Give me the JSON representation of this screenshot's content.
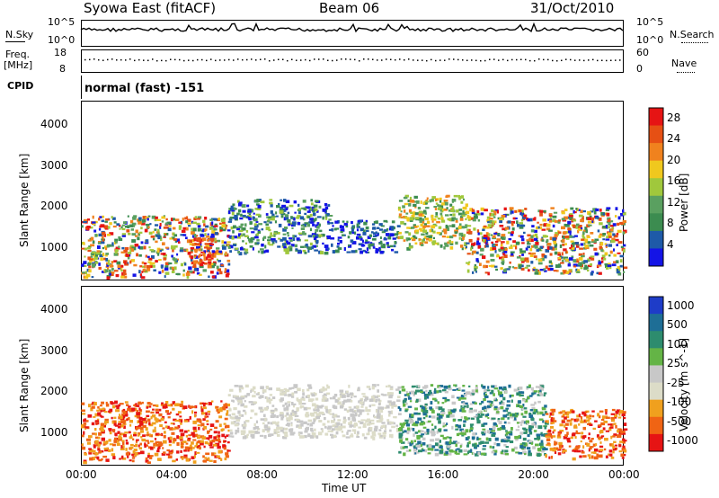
{
  "header": {
    "title_left": "Syowa East (fitACF)",
    "title_center": "Beam 06",
    "title_right": "31/Oct/2010"
  },
  "top_panels": {
    "nsky_label": "N.Sky",
    "nsky_top": "10^5",
    "nsky_bottom": "10^0",
    "nsearch_label": "N.Search",
    "nsearch_top": "10^5",
    "nsearch_bottom": "10^0",
    "freq_label": "Freq.",
    "freq_unit": "[MHz]",
    "freq_top": "18",
    "freq_bottom": "8",
    "nave_label": "Nave",
    "nave_top": "60",
    "nave_bottom": "0",
    "cpid_label": "CPID",
    "cpid_value": "normal (fast) -151"
  },
  "colors": {
    "power_scale": [
      "#1414e6",
      "#1e5aa8",
      "#3c8c50",
      "#5aa060",
      "#a0c83c",
      "#f0c81e",
      "#f0821e",
      "#e65014",
      "#e61414"
    ],
    "velocity_scale": [
      "#1e3cc8",
      "#1e6e96",
      "#2d8c6e",
      "#64b446",
      "#c8c8c8",
      "#dcdcc8",
      "#f0a01e",
      "#f06414",
      "#e61414"
    ]
  },
  "chart_data": [
    {
      "type": "heatmap",
      "ylabel": "Slant Range [km]",
      "yticks": [
        "1000",
        "2000",
        "3000",
        "4000"
      ],
      "ylim": [
        200,
        4600
      ],
      "xlabel": "",
      "xticks": [
        "00:00",
        "04:00",
        "08:00",
        "12:00",
        "16:00",
        "20:00",
        "00:00"
      ],
      "colorbar": {
        "label": "Power [dB]",
        "ticks": [
          "4",
          "8",
          "12",
          "16",
          "20",
          "24",
          "28"
        ],
        "range": [
          0,
          30
        ]
      },
      "regions": [
        {
          "t0": 0.0,
          "t1": 6.5,
          "r0": 300,
          "r1": 1800,
          "level": "mixed-high"
        },
        {
          "t0": 4.8,
          "t1": 6.0,
          "r0": 600,
          "r1": 1300,
          "level": "very-high"
        },
        {
          "t0": 6.5,
          "t1": 11.0,
          "r0": 900,
          "r1": 2200,
          "level": "low-mid"
        },
        {
          "t0": 11.0,
          "t1": 14.0,
          "r0": 900,
          "r1": 1700,
          "level": "low"
        },
        {
          "t0": 14.0,
          "t1": 17.0,
          "r0": 1000,
          "r1": 2300,
          "level": "mid"
        },
        {
          "t0": 17.0,
          "t1": 24.0,
          "r0": 400,
          "r1": 2000,
          "level": "mixed-high"
        }
      ]
    },
    {
      "type": "heatmap",
      "ylabel": "Slant Range [km]",
      "yticks": [
        "1000",
        "2000",
        "3000",
        "4000"
      ],
      "ylim": [
        200,
        4600
      ],
      "xlabel": "Time UT",
      "xticks": [
        "00:00",
        "04:00",
        "08:00",
        "12:00",
        "16:00",
        "20:00",
        "00:00"
      ],
      "colorbar": {
        "label": "Velocity [m s^-1]",
        "ticks": [
          "1000",
          "500",
          "100",
          "25",
          "-25",
          "-100",
          "-500",
          "-1000"
        ]
      },
      "regions": [
        {
          "t0": 0.0,
          "t1": 6.5,
          "r0": 300,
          "r1": 1800,
          "level": "negative"
        },
        {
          "t0": 6.5,
          "t1": 14.0,
          "r0": 900,
          "r1": 2200,
          "level": "near-zero"
        },
        {
          "t0": 14.0,
          "t1": 20.5,
          "r0": 500,
          "r1": 2200,
          "level": "positive"
        },
        {
          "t0": 20.5,
          "t1": 24.0,
          "r0": 400,
          "r1": 1600,
          "level": "negative"
        }
      ]
    }
  ]
}
